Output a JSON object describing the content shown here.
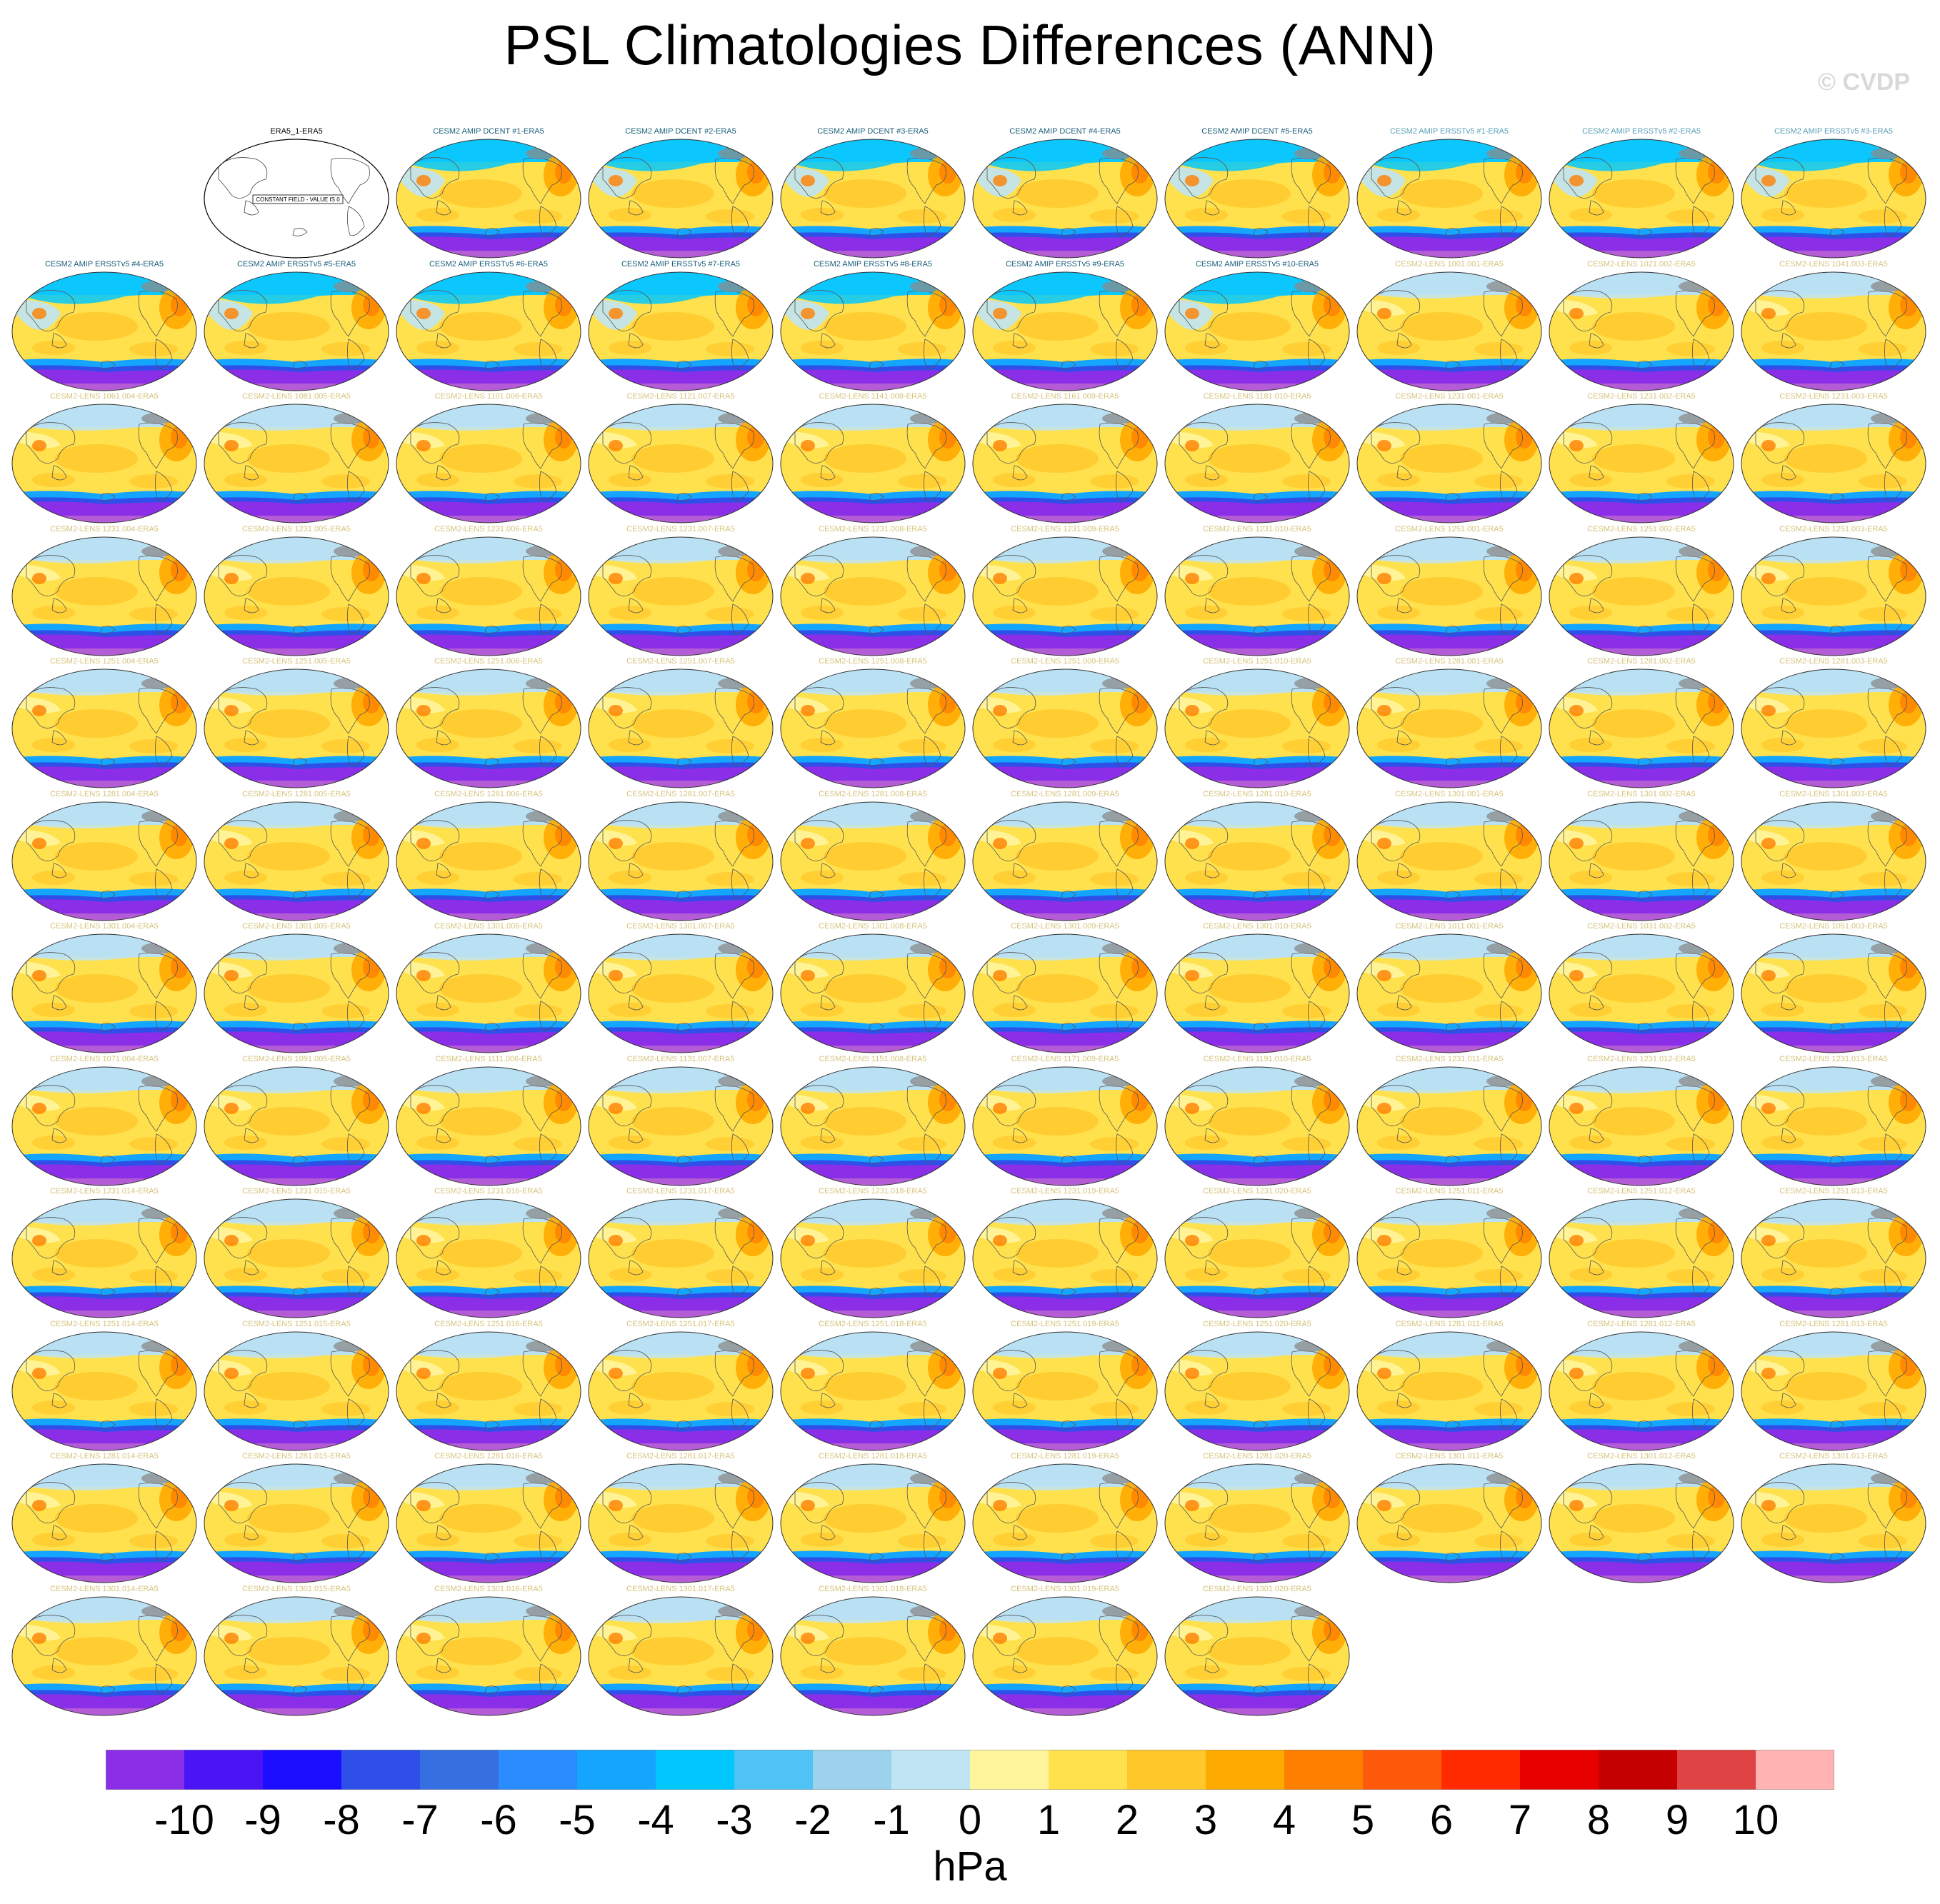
{
  "title": "PSL Climatologies Differences (ANN)",
  "watermark": "© CVDP",
  "units": "hPa",
  "colorbar": {
    "labels": [
      "-10",
      "-9",
      "-8",
      "-7",
      "-6",
      "-5",
      "-4",
      "-3",
      "-2",
      "-1",
      "0",
      "1",
      "2",
      "3",
      "4",
      "5",
      "6",
      "7",
      "8",
      "9",
      "10"
    ],
    "colors": [
      "#8b2ee8",
      "#4b14f5",
      "#1b0dff",
      "#2e4fe8",
      "#356fe0",
      "#2a8cff",
      "#14a5ff",
      "#00c8ff",
      "#4fc3f5",
      "#9dd2ec",
      "#bfe4f4",
      "#fff59d",
      "#ffe14d",
      "#ffc82a",
      "#ffaa00",
      "#ff8000",
      "#ff5a0a",
      "#ff2a00",
      "#e60000",
      "#c40000",
      "#e04343",
      "#ffb3b3"
    ]
  },
  "panels": [
    {
      "title": "ERA5_1-ERA5",
      "color": "#000000",
      "kind": "constant",
      "note": "CONSTANT FIELD - VALUE IS 0"
    },
    {
      "title": "CESM2 AMIP DCENT #1-ERA5",
      "color": "#1a5e7a",
      "kind": "amip"
    },
    {
      "title": "CESM2 AMIP DCENT #2-ERA5",
      "color": "#1a5e7a",
      "kind": "amip"
    },
    {
      "title": "CESM2 AMIP DCENT #3-ERA5",
      "color": "#1a5e7a",
      "kind": "amip"
    },
    {
      "title": "CESM2 AMIP DCENT #4-ERA5",
      "color": "#1a5e7a",
      "kind": "amip"
    },
    {
      "title": "CESM2 AMIP DCENT #5-ERA5",
      "color": "#1a5e7a",
      "kind": "amip"
    },
    {
      "title": "CESM2 AMIP ERSSTv5 #1-ERA5",
      "color": "#5a9fb8",
      "kind": "amip"
    },
    {
      "title": "CESM2 AMIP ERSSTv5 #2-ERA5",
      "color": "#5a9fb8",
      "kind": "amip"
    },
    {
      "title": "CESM2 AMIP ERSSTv5 #3-ERA5",
      "color": "#5a9fb8",
      "kind": "amip"
    },
    {
      "title": "CESM2 AMIP ERSSTv5 #4-ERA5",
      "color": "#1a5e7a",
      "kind": "amip"
    },
    {
      "title": "CESM2 AMIP ERSSTv5 #5-ERA5",
      "color": "#1a5e7a",
      "kind": "amip"
    },
    {
      "title": "CESM2 AMIP ERSSTv5 #6-ERA5",
      "color": "#1a5e7a",
      "kind": "amip"
    },
    {
      "title": "CESM2 AMIP ERSSTv5 #7-ERA5",
      "color": "#1a5e7a",
      "kind": "amip"
    },
    {
      "title": "CESM2 AMIP ERSSTv5 #8-ERA5",
      "color": "#1a5e7a",
      "kind": "amip"
    },
    {
      "title": "CESM2 AMIP ERSSTv5 #9-ERA5",
      "color": "#1a5e7a",
      "kind": "amip"
    },
    {
      "title": "CESM2 AMIP ERSSTv5 #10-ERA5",
      "color": "#1a5e7a",
      "kind": "amip"
    },
    {
      "title": "CESM2-LENS 1001.001-ERA5",
      "color": "#d6c27a",
      "kind": "lens"
    },
    {
      "title": "CESM2-LENS 1021.002-ERA5",
      "color": "#d6c27a",
      "kind": "lens"
    },
    {
      "title": "CESM2-LENS 1041.003-ERA5",
      "color": "#d6c27a",
      "kind": "lens"
    },
    {
      "title": "CESM2-LENS 1061.004-ERA5",
      "color": "#d6c27a",
      "kind": "lens"
    },
    {
      "title": "CESM2-LENS 1081.005-ERA5",
      "color": "#d6c27a",
      "kind": "lens"
    },
    {
      "title": "CESM2-LENS 1101.006-ERA5",
      "color": "#d6c27a",
      "kind": "lens"
    },
    {
      "title": "CESM2-LENS 1121.007-ERA5",
      "color": "#d6c27a",
      "kind": "lens"
    },
    {
      "title": "CESM2-LENS 1141.008-ERA5",
      "color": "#d6c27a",
      "kind": "lens"
    },
    {
      "title": "CESM2-LENS 1161.009-ERA5",
      "color": "#d6c27a",
      "kind": "lens"
    },
    {
      "title": "CESM2-LENS 1181.010-ERA5",
      "color": "#d6c27a",
      "kind": "lens"
    },
    {
      "title": "CESM2-LENS 1231.001-ERA5",
      "color": "#d6c27a",
      "kind": "lens"
    },
    {
      "title": "CESM2-LENS 1231.002-ERA5",
      "color": "#d6c27a",
      "kind": "lens"
    },
    {
      "title": "CESM2-LENS 1231.003-ERA5",
      "color": "#d6c27a",
      "kind": "lens"
    },
    {
      "title": "CESM2-LENS 1231.004-ERA5",
      "color": "#d6c27a",
      "kind": "lens"
    },
    {
      "title": "CESM2-LENS 1231.005-ERA5",
      "color": "#d6c27a",
      "kind": "lens"
    },
    {
      "title": "CESM2-LENS 1231.006-ERA5",
      "color": "#d6c27a",
      "kind": "lens"
    },
    {
      "title": "CESM2-LENS 1231.007-ERA5",
      "color": "#d6c27a",
      "kind": "lens"
    },
    {
      "title": "CESM2-LENS 1231.008-ERA5",
      "color": "#d6c27a",
      "kind": "lens"
    },
    {
      "title": "CESM2-LENS 1231.009-ERA5",
      "color": "#d6c27a",
      "kind": "lens"
    },
    {
      "title": "CESM2-LENS 1231.010-ERA5",
      "color": "#d6c27a",
      "kind": "lens"
    },
    {
      "title": "CESM2-LENS 1251.001-ERA5",
      "color": "#d6c27a",
      "kind": "lens"
    },
    {
      "title": "CESM2-LENS 1251.002-ERA5",
      "color": "#d6c27a",
      "kind": "lens"
    },
    {
      "title": "CESM2-LENS 1251.003-ERA5",
      "color": "#d6c27a",
      "kind": "lens"
    },
    {
      "title": "CESM2-LENS 1251.004-ERA5",
      "color": "#d6c27a",
      "kind": "lens"
    },
    {
      "title": "CESM2-LENS 1251.005-ERA5",
      "color": "#d6c27a",
      "kind": "lens"
    },
    {
      "title": "CESM2-LENS 1251.006-ERA5",
      "color": "#d6c27a",
      "kind": "lens"
    },
    {
      "title": "CESM2-LENS 1251.007-ERA5",
      "color": "#d6c27a",
      "kind": "lens"
    },
    {
      "title": "CESM2-LENS 1251.008-ERA5",
      "color": "#d6c27a",
      "kind": "lens"
    },
    {
      "title": "CESM2-LENS 1251.009-ERA5",
      "color": "#d6c27a",
      "kind": "lens"
    },
    {
      "title": "CESM2-LENS 1251.010-ERA5",
      "color": "#d6c27a",
      "kind": "lens"
    },
    {
      "title": "CESM2-LENS 1281.001-ERA5",
      "color": "#d6c27a",
      "kind": "lens"
    },
    {
      "title": "CESM2-LENS 1281.002-ERA5",
      "color": "#d6c27a",
      "kind": "lens"
    },
    {
      "title": "CESM2-LENS 1281.003-ERA5",
      "color": "#d6c27a",
      "kind": "lens"
    },
    {
      "title": "CESM2-LENS 1281.004-ERA5",
      "color": "#d6c27a",
      "kind": "lens"
    },
    {
      "title": "CESM2-LENS 1281.005-ERA5",
      "color": "#d6c27a",
      "kind": "lens"
    },
    {
      "title": "CESM2-LENS 1281.006-ERA5",
      "color": "#d6c27a",
      "kind": "lens"
    },
    {
      "title": "CESM2-LENS 1281.007-ERA5",
      "color": "#d6c27a",
      "kind": "lens"
    },
    {
      "title": "CESM2-LENS 1281.008-ERA5",
      "color": "#d6c27a",
      "kind": "lens"
    },
    {
      "title": "CESM2-LENS 1281.009-ERA5",
      "color": "#d6c27a",
      "kind": "lens"
    },
    {
      "title": "CESM2-LENS 1281.010-ERA5",
      "color": "#d6c27a",
      "kind": "lens"
    },
    {
      "title": "CESM2-LENS 1301.001-ERA5",
      "color": "#d6c27a",
      "kind": "lens"
    },
    {
      "title": "CESM2-LENS 1301.002-ERA5",
      "color": "#d6c27a",
      "kind": "lens"
    },
    {
      "title": "CESM2-LENS 1301.003-ERA5",
      "color": "#d6c27a",
      "kind": "lens"
    },
    {
      "title": "CESM2-LENS 1301.004-ERA5",
      "color": "#d6c27a",
      "kind": "lens"
    },
    {
      "title": "CESM2-LENS 1301.005-ERA5",
      "color": "#d6c27a",
      "kind": "lens"
    },
    {
      "title": "CESM2-LENS 1301.006-ERA5",
      "color": "#d6c27a",
      "kind": "lens"
    },
    {
      "title": "CESM2-LENS 1301.007-ERA5",
      "color": "#d6c27a",
      "kind": "lens"
    },
    {
      "title": "CESM2-LENS 1301.008-ERA5",
      "color": "#d6c27a",
      "kind": "lens"
    },
    {
      "title": "CESM2-LENS 1301.009-ERA5",
      "color": "#d6c27a",
      "kind": "lens"
    },
    {
      "title": "CESM2-LENS 1301.010-ERA5",
      "color": "#d6c27a",
      "kind": "lens"
    },
    {
      "title": "CESM2-LENS 1011.001-ERA5",
      "color": "#d6c27a",
      "kind": "lens"
    },
    {
      "title": "CESM2-LENS 1031.002-ERA5",
      "color": "#d6c27a",
      "kind": "lens"
    },
    {
      "title": "CESM2-LENS 1051.003-ERA5",
      "color": "#d6c27a",
      "kind": "lens"
    },
    {
      "title": "CESM2-LENS 1071.004-ERA5",
      "color": "#d6c27a",
      "kind": "lens"
    },
    {
      "title": "CESM2-LENS 1091.005-ERA5",
      "color": "#d6c27a",
      "kind": "lens"
    },
    {
      "title": "CESM2-LENS 1111.006-ERA5",
      "color": "#d6c27a",
      "kind": "lens"
    },
    {
      "title": "CESM2-LENS 1131.007-ERA5",
      "color": "#d6c27a",
      "kind": "lens"
    },
    {
      "title": "CESM2-LENS 1151.008-ERA5",
      "color": "#d6c27a",
      "kind": "lens"
    },
    {
      "title": "CESM2-LENS 1171.009-ERA5",
      "color": "#d6c27a",
      "kind": "lens"
    },
    {
      "title": "CESM2-LENS 1191.010-ERA5",
      "color": "#d6c27a",
      "kind": "lens"
    },
    {
      "title": "CESM2-LENS 1231.011-ERA5",
      "color": "#d6c27a",
      "kind": "lens"
    },
    {
      "title": "CESM2-LENS 1231.012-ERA5",
      "color": "#d6c27a",
      "kind": "lens"
    },
    {
      "title": "CESM2-LENS 1231.013-ERA5",
      "color": "#d6c27a",
      "kind": "lens"
    },
    {
      "title": "CESM2-LENS 1231.014-ERA5",
      "color": "#d6c27a",
      "kind": "lens"
    },
    {
      "title": "CESM2-LENS 1231.015-ERA5",
      "color": "#d6c27a",
      "kind": "lens"
    },
    {
      "title": "CESM2-LENS 1231.016-ERA5",
      "color": "#d6c27a",
      "kind": "lens"
    },
    {
      "title": "CESM2-LENS 1231.017-ERA5",
      "color": "#d6c27a",
      "kind": "lens"
    },
    {
      "title": "CESM2-LENS 1231.018-ERA5",
      "color": "#d6c27a",
      "kind": "lens"
    },
    {
      "title": "CESM2-LENS 1231.019-ERA5",
      "color": "#d6c27a",
      "kind": "lens"
    },
    {
      "title": "CESM2-LENS 1231.020-ERA5",
      "color": "#d6c27a",
      "kind": "lens"
    },
    {
      "title": "CESM2-LENS 1251.011-ERA5",
      "color": "#d6c27a",
      "kind": "lens"
    },
    {
      "title": "CESM2-LENS 1251.012-ERA5",
      "color": "#d6c27a",
      "kind": "lens"
    },
    {
      "title": "CESM2-LENS 1251.013-ERA5",
      "color": "#d6c27a",
      "kind": "lens"
    },
    {
      "title": "CESM2-LENS 1251.014-ERA5",
      "color": "#d6c27a",
      "kind": "lens"
    },
    {
      "title": "CESM2-LENS 1251.015-ERA5",
      "color": "#d6c27a",
      "kind": "lens"
    },
    {
      "title": "CESM2-LENS 1251.016-ERA5",
      "color": "#d6c27a",
      "kind": "lens"
    },
    {
      "title": "CESM2-LENS 1251.017-ERA5",
      "color": "#d6c27a",
      "kind": "lens"
    },
    {
      "title": "CESM2-LENS 1251.018-ERA5",
      "color": "#d6c27a",
      "kind": "lens"
    },
    {
      "title": "CESM2-LENS 1251.019-ERA5",
      "color": "#d6c27a",
      "kind": "lens"
    },
    {
      "title": "CESM2-LENS 1251.020-ERA5",
      "color": "#d6c27a",
      "kind": "lens"
    },
    {
      "title": "CESM2-LENS 1281.011-ERA5",
      "color": "#d6c27a",
      "kind": "lens"
    },
    {
      "title": "CESM2-LENS 1281.012-ERA5",
      "color": "#d6c27a",
      "kind": "lens"
    },
    {
      "title": "CESM2-LENS 1281.013-ERA5",
      "color": "#d6c27a",
      "kind": "lens"
    },
    {
      "title": "CESM2-LENS 1281.014-ERA5",
      "color": "#d6c27a",
      "kind": "lens"
    },
    {
      "title": "CESM2-LENS 1281.015-ERA5",
      "color": "#d6c27a",
      "kind": "lens"
    },
    {
      "title": "CESM2-LENS 1281.016-ERA5",
      "color": "#d6c27a",
      "kind": "lens"
    },
    {
      "title": "CESM2-LENS 1281.017-ERA5",
      "color": "#d6c27a",
      "kind": "lens"
    },
    {
      "title": "CESM2-LENS 1281.018-ERA5",
      "color": "#d6c27a",
      "kind": "lens"
    },
    {
      "title": "CESM2-LENS 1281.019-ERA5",
      "color": "#d6c27a",
      "kind": "lens"
    },
    {
      "title": "CESM2-LENS 1281.020-ERA5",
      "color": "#d6c27a",
      "kind": "lens"
    },
    {
      "title": "CESM2-LENS 1301.011-ERA5",
      "color": "#d6c27a",
      "kind": "lens"
    },
    {
      "title": "CESM2-LENS 1301.012-ERA5",
      "color": "#d6c27a",
      "kind": "lens"
    },
    {
      "title": "CESM2-LENS 1301.013-ERA5",
      "color": "#d6c27a",
      "kind": "lens"
    },
    {
      "title": "CESM2-LENS 1301.014-ERA5",
      "color": "#d6c27a",
      "kind": "lens"
    },
    {
      "title": "CESM2-LENS 1301.015-ERA5",
      "color": "#d6c27a",
      "kind": "lens"
    },
    {
      "title": "CESM2-LENS 1301.016-ERA5",
      "color": "#d6c27a",
      "kind": "lens"
    },
    {
      "title": "CESM2-LENS 1301.017-ERA5",
      "color": "#d6c27a",
      "kind": "lens"
    },
    {
      "title": "CESM2-LENS 1301.018-ERA5",
      "color": "#d6c27a",
      "kind": "lens"
    },
    {
      "title": "CESM2-LENS 1301.019-ERA5",
      "color": "#d6c27a",
      "kind": "lens"
    },
    {
      "title": "CESM2-LENS 1301.020-ERA5",
      "color": "#d6c27a",
      "kind": "lens"
    }
  ]
}
